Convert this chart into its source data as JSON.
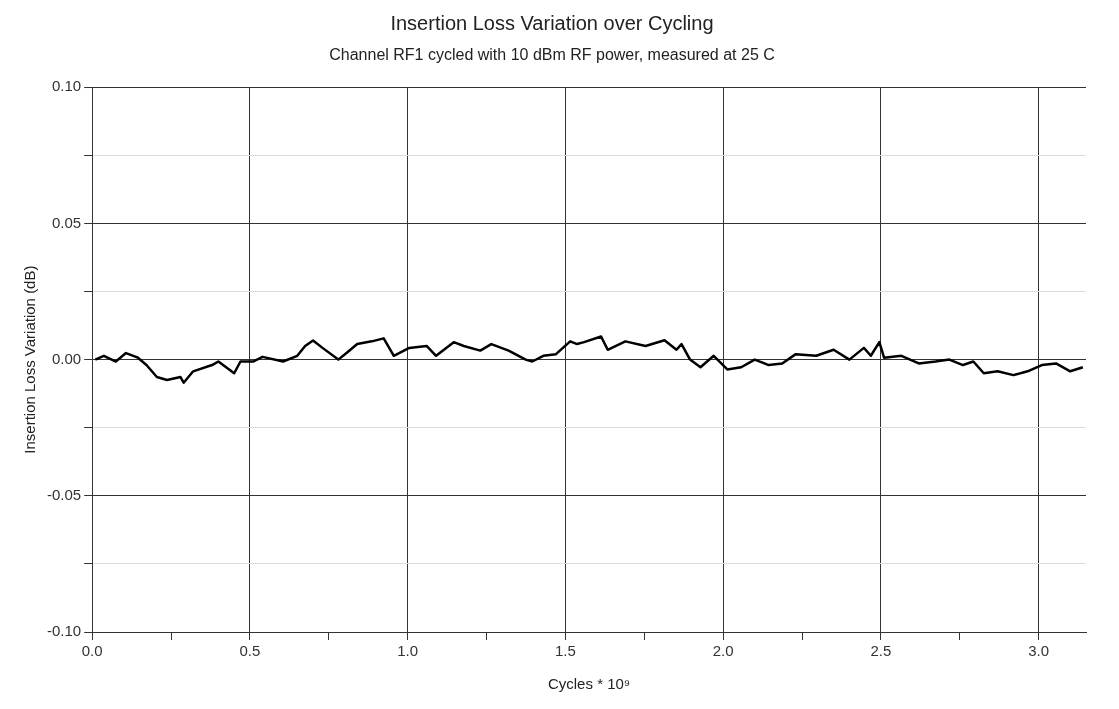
{
  "chart_data": {
    "type": "line",
    "title": "Insertion Loss Variation over Cycling",
    "subtitle": "Channel RF1 cycled with 10 dBm RF power, measured at 25 C",
    "xlabel": "Cycles * 10⁹",
    "ylabel": "Insertion Loss Variation (dB)",
    "xlim": [
      0,
      3.15
    ],
    "xticks": [
      {
        "value": 0,
        "label": "0.0"
      },
      {
        "value": 0.25,
        "label": null
      },
      {
        "value": 0.5,
        "label": "0.5"
      },
      {
        "value": 0.75,
        "label": null
      },
      {
        "value": 1,
        "label": "1.0"
      },
      {
        "value": 1.25,
        "label": null
      },
      {
        "value": 1.5,
        "label": "1.5"
      },
      {
        "value": 1.75,
        "label": null
      },
      {
        "value": 2,
        "label": "2.0"
      },
      {
        "value": 2.25,
        "label": null
      },
      {
        "value": 2.5,
        "label": "2.5"
      },
      {
        "value": 2.75,
        "label": null
      },
      {
        "value": 3,
        "label": "3.0"
      }
    ],
    "ylim": [
      -0.1,
      0.1
    ],
    "yticks": [
      {
        "value": -0.1,
        "label": "-0.10"
      },
      {
        "value": -0.075,
        "label": null
      },
      {
        "value": -0.05,
        "label": "-0.05"
      },
      {
        "value": -0.025,
        "label": null
      },
      {
        "value": 0,
        "label": "0.00"
      },
      {
        "value": 0.025,
        "label": null
      },
      {
        "value": 0.05,
        "label": "0.05"
      },
      {
        "value": 0.075,
        "label": null
      },
      {
        "value": 0.1,
        "label": "0.10"
      }
    ],
    "grid": true,
    "legend": false,
    "marker": "none",
    "line_style": "solid",
    "series": [
      {
        "color": "#000000",
        "x": [
          0.01,
          0.037,
          0.075,
          0.107,
          0.145,
          0.172,
          0.205,
          0.237,
          0.28,
          0.29,
          0.32,
          0.38,
          0.4,
          0.45,
          0.47,
          0.51,
          0.54,
          0.605,
          0.65,
          0.675,
          0.7,
          0.73,
          0.78,
          0.81,
          0.84,
          0.886,
          0.924,
          0.956,
          1.005,
          1.06,
          1.09,
          1.146,
          1.178,
          1.23,
          1.265,
          1.32,
          1.374,
          1.395,
          1.43,
          1.47,
          1.515,
          1.537,
          1.559,
          1.613,
          1.634,
          1.69,
          1.754,
          1.814,
          1.852,
          1.868,
          1.895,
          1.928,
          1.97,
          2.013,
          2.057,
          2.1,
          2.144,
          2.187,
          2.23,
          2.295,
          2.35,
          2.4,
          2.446,
          2.468,
          2.495,
          2.51,
          2.565,
          2.62,
          2.673,
          2.717,
          2.76,
          2.793,
          2.826,
          2.87,
          2.92,
          2.965,
          3.01,
          3.055,
          3.1,
          3.14
        ],
        "values": [
          0,
          0.0014,
          -0.0007,
          0.0024,
          0.0007,
          -0.002,
          -0.0064,
          -0.0075,
          -0.0064,
          -0.0085,
          -0.0043,
          -0.002,
          -0.0007,
          -0.005,
          -0.0007,
          -0.0007,
          0.001,
          -0.0007,
          0.0014,
          0.005,
          0.007,
          0.0043,
          0,
          0.0028,
          0.0057,
          0.0067,
          0.0078,
          0.0014,
          0.0043,
          0.005,
          0.0014,
          0.0064,
          0.005,
          0.0033,
          0.0057,
          0.0033,
          0,
          -0.0007,
          0.0014,
          0.002,
          0.0067,
          0.0057,
          0.0064,
          0.0085,
          0.0036,
          0.0067,
          0.005,
          0.0071,
          0.0036,
          0.0057,
          0,
          -0.0028,
          0.0014,
          -0.0036,
          -0.0028,
          0,
          -0.002,
          -0.0014,
          0.002,
          0.0014,
          0.0036,
          0,
          0.0043,
          0.0014,
          0.0064,
          0.0007,
          0.0014,
          -0.0014,
          -0.0007,
          0,
          -0.002,
          -0.0007,
          -0.005,
          -0.0043,
          -0.0057,
          -0.0043,
          -0.002,
          -0.0014,
          -0.0043,
          -0.0028
        ]
      }
    ]
  }
}
